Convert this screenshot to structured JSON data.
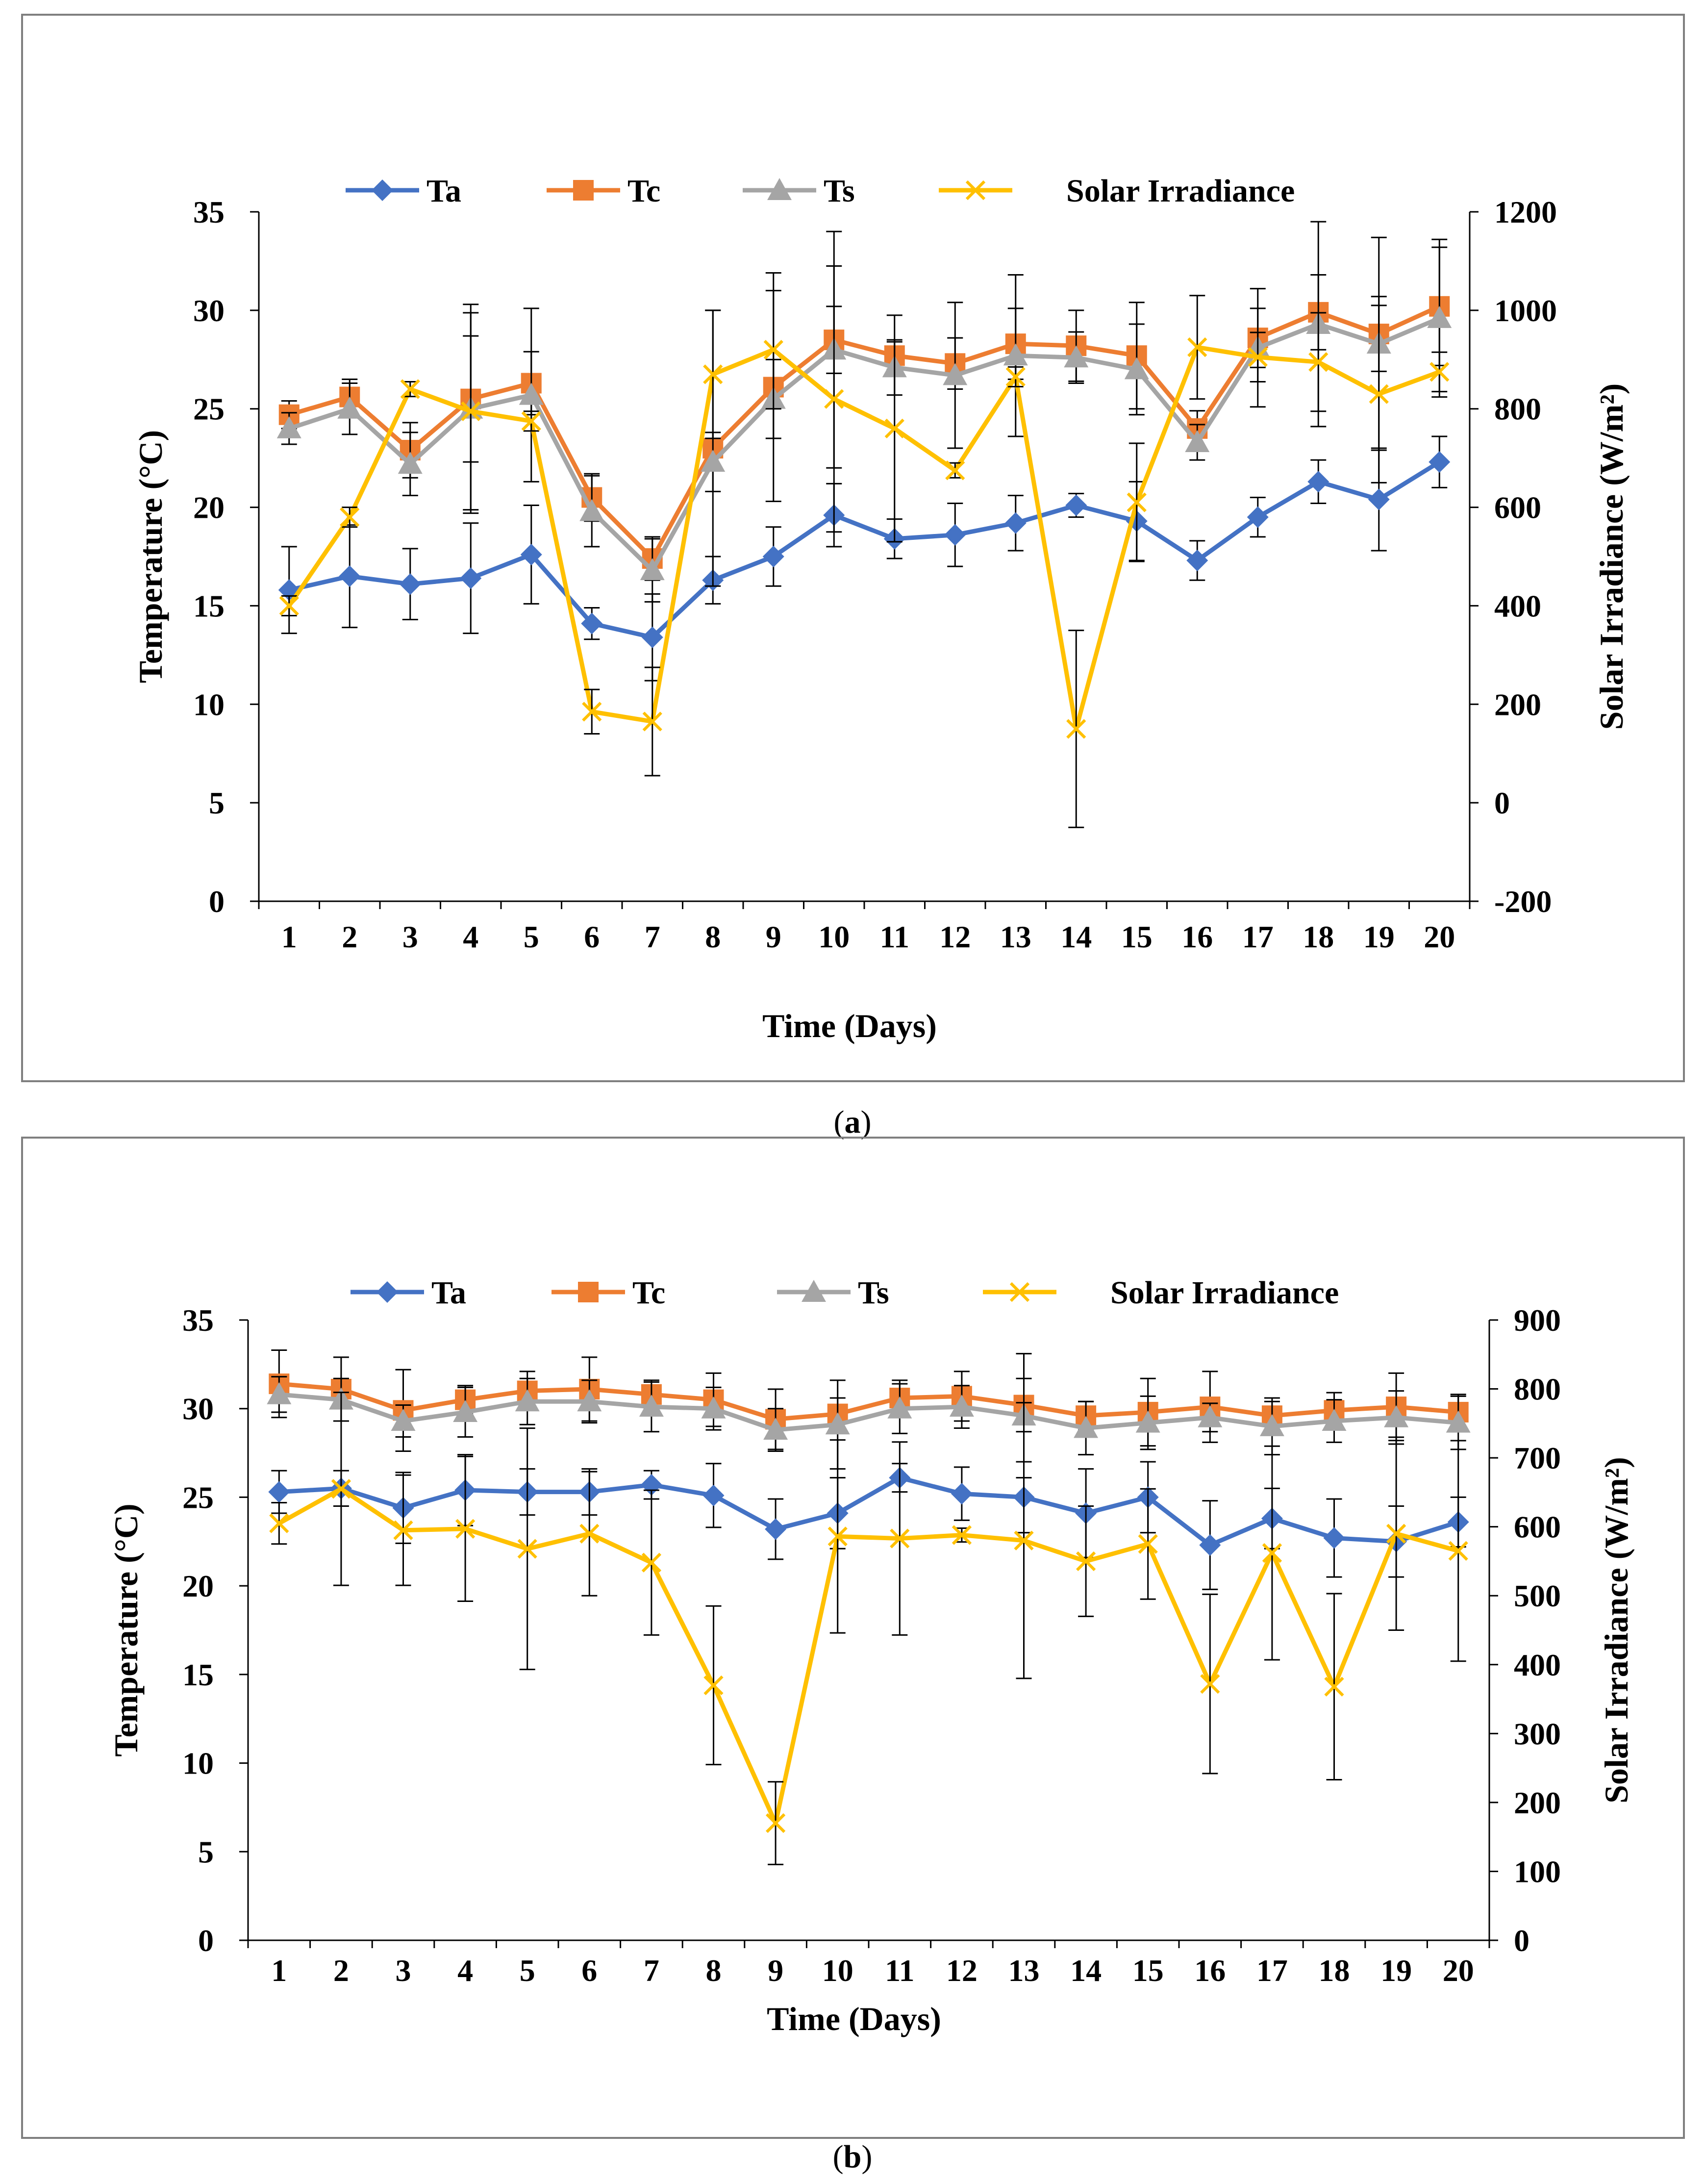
{
  "figure": {
    "caption_a": "(a)",
    "caption_b": "(b)",
    "caption_a_letter": "a",
    "caption_b_letter": "b"
  },
  "colors": {
    "ta": "#4472C4",
    "tc": "#ED7D31",
    "ts": "#A5A5A5",
    "solar": "#FFC000",
    "errorbar": "#000000",
    "frame": "#7F7F7F"
  },
  "chart_data": [
    {
      "id": "a",
      "type": "line",
      "title": "",
      "xlabel": "Time  (Days)",
      "ylabel": "Temperature (°C)",
      "y2label": "Solar Irradiance (W/m²)",
      "categories": [
        "1",
        "2",
        "3",
        "4",
        "5",
        "6",
        "7",
        "8",
        "9",
        "10",
        "11",
        "12",
        "13",
        "14",
        "15",
        "16",
        "17",
        "18",
        "19",
        "20"
      ],
      "ylim": [
        0,
        35
      ],
      "yticks": [
        0,
        5,
        10,
        15,
        20,
        25,
        30,
        35
      ],
      "y2lim": [
        -200,
        1200
      ],
      "y2ticks": [
        -200,
        0,
        200,
        400,
        600,
        800,
        1000,
        1200
      ],
      "grid": false,
      "legend_position": "top",
      "series": [
        {
          "name": "Ta",
          "key": "ta",
          "axis": "left",
          "marker": "diamond",
          "values": [
            15.8,
            16.5,
            16.1,
            16.4,
            17.6,
            14.1,
            13.4,
            16.3,
            17.5,
            19.6,
            18.4,
            18.6,
            19.2,
            20.1,
            19.3,
            17.3,
            19.5,
            21.3,
            20.4,
            22.3
          ],
          "errors": [
            2.2,
            2.6,
            1.8,
            2.8,
            2.5,
            0.8,
            2.2,
            1.2,
            1.5,
            1.6,
            1.0,
            1.6,
            1.4,
            0.6,
            2.0,
            1.0,
            1.0,
            1.1,
            2.6,
            1.3
          ]
        },
        {
          "name": "Tc",
          "key": "tc",
          "axis": "left",
          "marker": "square",
          "values": [
            24.7,
            25.6,
            22.9,
            25.5,
            26.3,
            20.5,
            17.4,
            23.0,
            26.1,
            28.5,
            27.7,
            27.3,
            28.3,
            28.2,
            27.7,
            24.0,
            28.6,
            29.9,
            28.8,
            30.2
          ],
          "errors": [
            0.7,
            0.9,
            1.4,
            3.2,
            1.6,
            1.2,
            1.1,
            7.0,
            5.8,
            1.7,
            0.7,
            1.3,
            1.8,
            1.8,
            2.7,
            0.9,
            1.5,
            1.9,
            1.9,
            3.0
          ]
        },
        {
          "name": "Ts",
          "key": "ts",
          "axis": "left",
          "marker": "triangle",
          "values": [
            24.0,
            25.0,
            22.2,
            25.0,
            25.7,
            19.8,
            16.8,
            22.3,
            25.5,
            28.0,
            27.1,
            26.7,
            27.7,
            27.6,
            27.0,
            23.3,
            28.1,
            29.3,
            28.3,
            29.6
          ],
          "errors": [
            0.8,
            1.3,
            1.6,
            5.3,
            4.4,
            1.8,
            1.6,
            1.5,
            2.0,
            6.0,
            1.4,
            3.7,
            4.1,
            1.3,
            2.3,
            0.9,
            3.0,
            5.2,
            5.4,
            4.0
          ]
        },
        {
          "name": "Solar Irradiance",
          "key": "solar",
          "axis": "right",
          "marker": "x",
          "values": [
            400,
            580,
            840,
            795,
            775,
            185,
            165,
            870,
            920,
            820,
            760,
            675,
            865,
            150,
            610,
            925,
            905,
            895,
            830,
            875
          ],
          "errors": [
            20,
            20,
            15,
            200,
            20,
            45,
            110,
            130,
            120,
            270,
            230,
            15,
            20,
            200,
            120,
            105,
            50,
            100,
            180,
            40
          ]
        }
      ]
    },
    {
      "id": "b",
      "type": "line",
      "title": "",
      "xlabel": "Time  (Days)",
      "ylabel": "Temperature (°C)",
      "y2label": "Solar Irradiance (W/m²)",
      "categories": [
        "1",
        "2",
        "3",
        "4",
        "5",
        "6",
        "7",
        "8",
        "9",
        "10",
        "11",
        "12",
        "13",
        "14",
        "15",
        "16",
        "17",
        "18",
        "19",
        "20"
      ],
      "ylim": [
        0,
        35
      ],
      "yticks": [
        0,
        5,
        10,
        15,
        20,
        25,
        30,
        35
      ],
      "y2lim": [
        0,
        900
      ],
      "y2ticks": [
        0,
        100,
        200,
        300,
        400,
        500,
        600,
        700,
        800,
        900
      ],
      "grid": false,
      "legend_position": "top",
      "series": [
        {
          "name": "Ta",
          "key": "ta",
          "axis": "left",
          "marker": "diamond",
          "values": [
            25.3,
            25.5,
            24.4,
            25.4,
            25.3,
            25.3,
            25.7,
            25.1,
            23.2,
            24.1,
            26.1,
            25.2,
            25.0,
            24.1,
            25.0,
            22.3,
            23.8,
            22.7,
            22.5,
            23.6
          ],
          "errors": [
            1.2,
            1.0,
            2.0,
            2.0,
            1.3,
            1.3,
            0.8,
            1.8,
            1.7,
            2.0,
            0.8,
            1.5,
            2.0,
            2.5,
            2.0,
            2.5,
            1.7,
            2.2,
            2.0,
            1.4
          ]
        },
        {
          "name": "Tc",
          "key": "tc",
          "axis": "left",
          "marker": "square",
          "values": [
            31.4,
            31.1,
            29.9,
            30.5,
            31.0,
            31.1,
            30.8,
            30.5,
            29.4,
            29.7,
            30.6,
            30.7,
            30.2,
            29.6,
            29.8,
            30.1,
            29.6,
            29.9,
            30.1,
            29.8
          ],
          "errors": [
            1.9,
            1.8,
            2.3,
            0.8,
            1.1,
            1.8,
            0.8,
            1.5,
            1.7,
            0.9,
            1.0,
            1.4,
            1.5,
            0.8,
            1.9,
            2.0,
            0.8,
            1.0,
            1.9,
            1.0
          ]
        },
        {
          "name": "Ts",
          "key": "ts",
          "axis": "left",
          "marker": "triangle",
          "values": [
            30.8,
            30.5,
            29.3,
            29.8,
            30.4,
            30.4,
            30.1,
            30.0,
            28.8,
            29.1,
            30.0,
            30.1,
            29.6,
            28.9,
            29.2,
            29.5,
            29.0,
            29.3,
            29.5,
            29.2
          ],
          "errors": [
            1.0,
            1.2,
            0.9,
            1.4,
            1.3,
            1.2,
            1.4,
            1.2,
            1.2,
            2.5,
            1.4,
            1.2,
            3.5,
            1.5,
            1.5,
            0.8,
            1.6,
            1.2,
            1.5,
            1.5
          ]
        },
        {
          "name": "Solar Irradiance",
          "key": "solar",
          "axis": "right",
          "marker": "x",
          "values": [
            605,
            655,
            595,
            597,
            568,
            590,
            548,
            370,
            170,
            586,
            583,
            588,
            580,
            550,
            575,
            372,
            562,
            368,
            590,
            565
          ],
          "errors": [
            30,
            140,
            80,
            105,
            175,
            90,
            105,
            115,
            60,
            140,
            140,
            10,
            200,
            80,
            80,
            130,
            155,
            135,
            140,
            160
          ]
        }
      ]
    }
  ]
}
